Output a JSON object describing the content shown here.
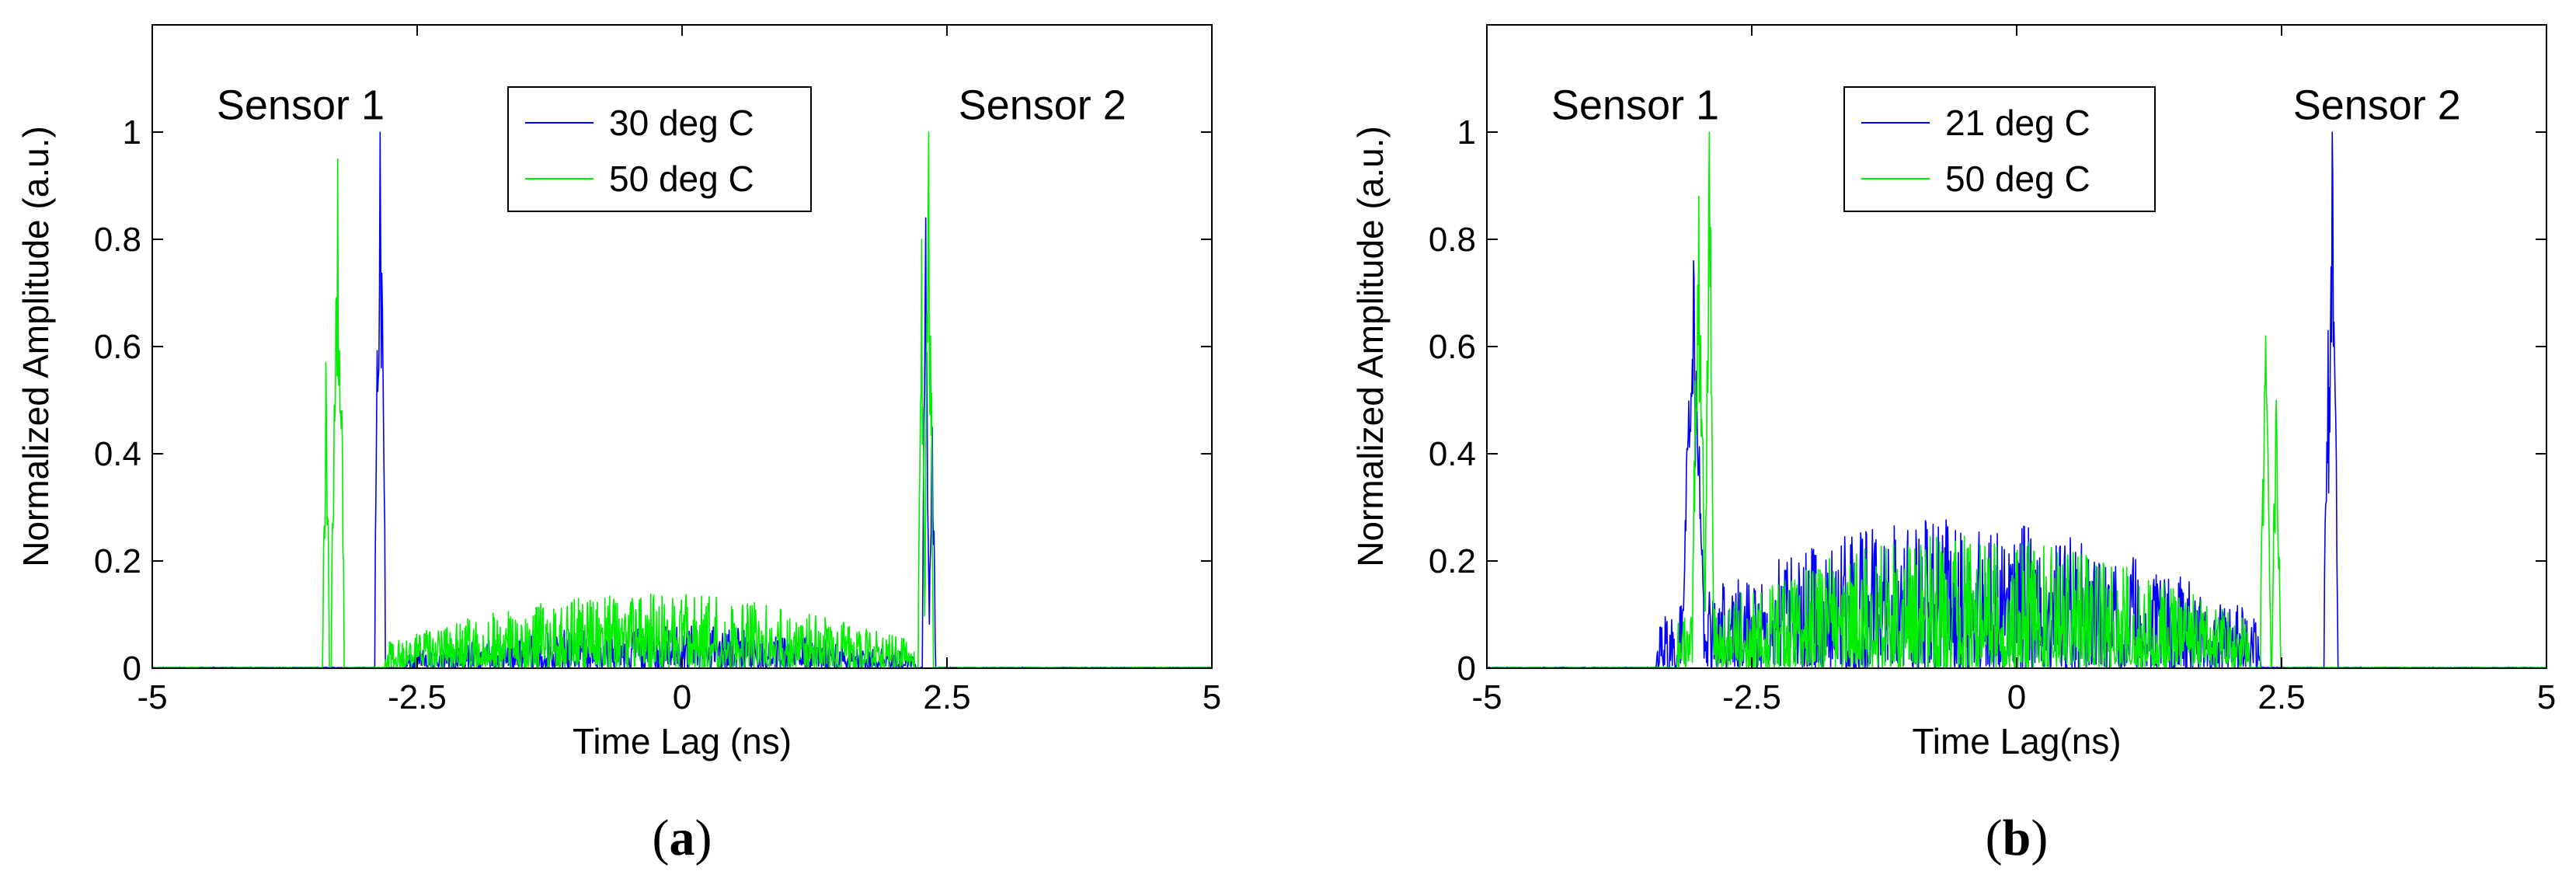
{
  "chart_data": [
    {
      "type": "line",
      "panel_label": "a",
      "xlabel": "Time Lag (ns)",
      "ylabel": "Normalized Amplitude (a.u.)",
      "xlim": [
        -5,
        5
      ],
      "ylim": [
        0,
        1.2
      ],
      "xticks": [
        -5,
        -2.5,
        0,
        2.5,
        5
      ],
      "xtick_labels": [
        "-5",
        "-2.5",
        "0",
        "2.5",
        "5"
      ],
      "yticks": [
        0,
        0.2,
        0.4,
        0.6,
        0.8,
        1
      ],
      "ytick_labels": [
        "0",
        "0.2",
        "0.4",
        "0.6",
        "0.8",
        "1"
      ],
      "grid": false,
      "legend_position": "top-center",
      "annotations": [
        {
          "text": "Sensor 1",
          "x": -3.6,
          "y": 1.05
        },
        {
          "text": "Sensor 2",
          "x": 3.4,
          "y": 1.05
        }
      ],
      "series": [
        {
          "name": "30 deg C",
          "color": "#0000ff",
          "peaks": [
            {
              "x": -2.85,
              "y": 1.0,
              "width": 0.05
            },
            {
              "x": 2.3,
              "y": 0.84,
              "width": 0.03
            },
            {
              "x": 2.36,
              "y": 0.45,
              "width": 0.03
            }
          ],
          "noise_band": {
            "x_start": -2.6,
            "x_end": 2.2,
            "max": 0.08
          }
        },
        {
          "name": "50 deg C",
          "color": "#00ee00",
          "peaks": [
            {
              "x": -3.36,
              "y": 0.57,
              "width": 0.03
            },
            {
              "x": -3.25,
              "y": 0.95,
              "width": 0.06
            },
            {
              "x": 2.33,
              "y": 1.0,
              "width": 0.04
            },
            {
              "x": 2.26,
              "y": 0.8,
              "width": 0.03
            }
          ],
          "noise_band": {
            "x_start": -2.8,
            "x_end": 2.2,
            "max": 0.14
          }
        }
      ]
    },
    {
      "type": "line",
      "panel_label": "b",
      "xlabel": "Time Lag(ns)",
      "ylabel": "Normalized Amplitude (a.u.)",
      "xlim": [
        -5,
        5
      ],
      "ylim": [
        0,
        1.2
      ],
      "xticks": [
        -5,
        -2.5,
        0,
        2.5,
        5
      ],
      "xtick_labels": [
        "-5",
        "-2.5",
        "0",
        "2.5",
        "5"
      ],
      "yticks": [
        0,
        0.2,
        0.4,
        0.6,
        0.8,
        1
      ],
      "ytick_labels": [
        "0",
        "0.2",
        "0.4",
        "0.6",
        "0.8",
        "1"
      ],
      "grid": false,
      "legend_position": "top-center",
      "annotations": [
        {
          "text": "Sensor 1",
          "x": -3.6,
          "y": 1.05
        },
        {
          "text": "Sensor 2",
          "x": 3.4,
          "y": 1.05
        }
      ],
      "series": [
        {
          "name": "21 deg C",
          "color": "#0000ff",
          "peaks": [
            {
              "x": -3.05,
              "y": 0.76,
              "width": 0.1
            },
            {
              "x": 2.98,
              "y": 1.0,
              "width": 0.05
            },
            {
              "x": 2.94,
              "y": 0.63,
              "width": 0.04
            }
          ],
          "noise_band": {
            "x_start": -3.4,
            "x_end": 2.3,
            "max": 0.28
          }
        },
        {
          "name": "50 deg C",
          "color": "#00ee00",
          "peaks": [
            {
              "x": -3.0,
              "y": 0.88,
              "width": 0.06
            },
            {
              "x": -2.9,
              "y": 1.0,
              "width": 0.04
            },
            {
              "x": 2.35,
              "y": 0.62,
              "width": 0.05
            },
            {
              "x": 2.45,
              "y": 0.5,
              "width": 0.04
            }
          ],
          "noise_band": {
            "x_start": -3.2,
            "x_end": 2.2,
            "max": 0.25
          }
        }
      ]
    }
  ]
}
